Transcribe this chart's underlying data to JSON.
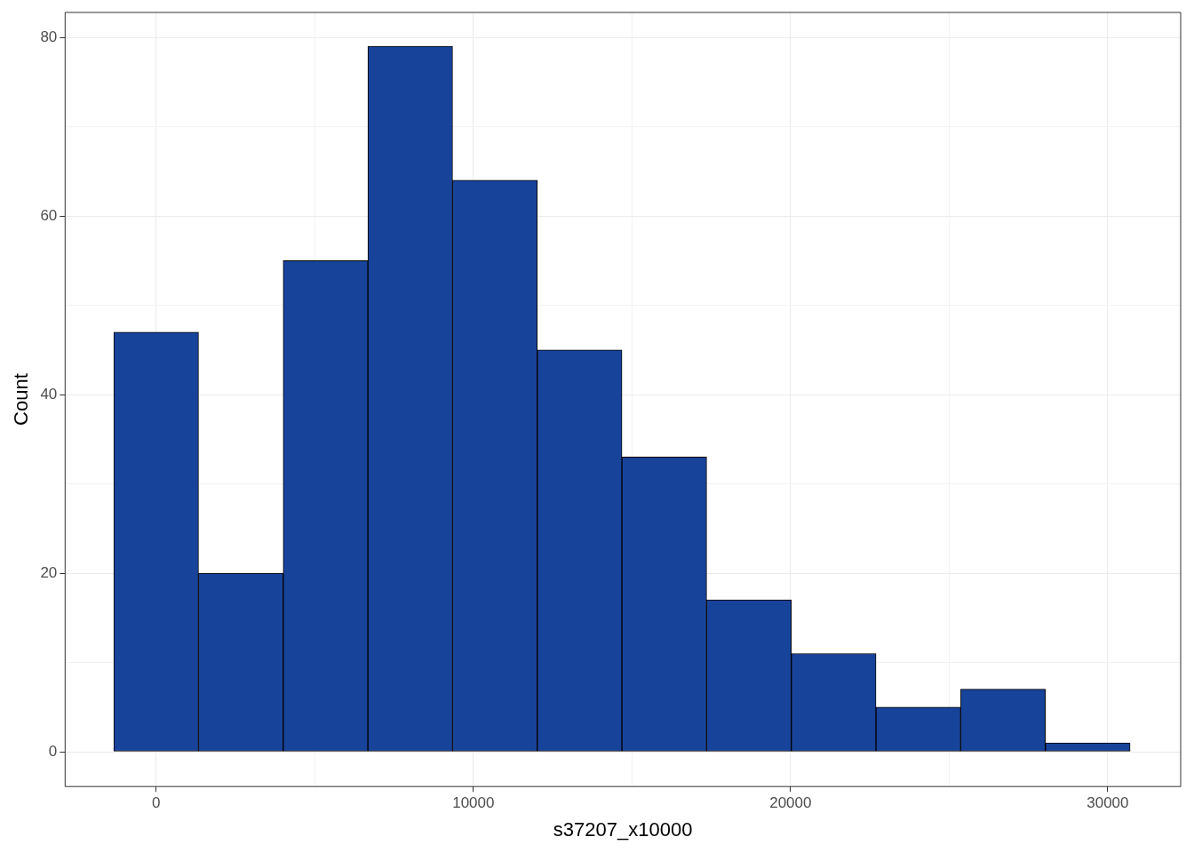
{
  "chart_data": {
    "type": "histogram",
    "xlabel": "s37207_x10000",
    "ylabel": "Count",
    "bins": [
      -1335,
      1335,
      4005,
      6675,
      9345,
      12015,
      14685,
      17355,
      20025,
      22695,
      25365,
      28035,
      30705
    ],
    "values": [
      47,
      20,
      55,
      79,
      64,
      45,
      33,
      17,
      11,
      5,
      7,
      1
    ],
    "color": "#18439a",
    "xlim": [
      -2870,
      32300
    ],
    "xticks": [
      0,
      10000,
      20000,
      30000
    ],
    "ylim": [
      -3.9,
      82.8
    ],
    "yticks": [
      0,
      20,
      40,
      60,
      80
    ],
    "grid": true
  }
}
